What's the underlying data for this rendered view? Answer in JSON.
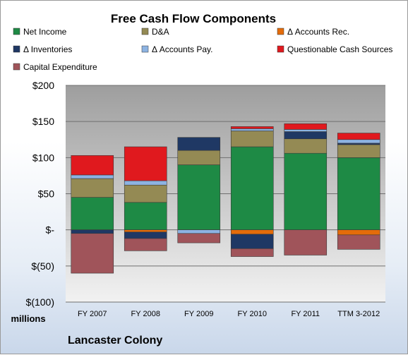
{
  "chart_data": {
    "type": "bar",
    "stacked": true,
    "title": "Free Cash Flow Components",
    "unit_label": "millions",
    "footer": "Lancaster Colony",
    "categories": [
      "FY 2007",
      "FY 2008",
      "FY 2009",
      "FY 2010",
      "FY 2011",
      "TTM 3-2012"
    ],
    "y_ticks": [
      "$200",
      "$150",
      "$100",
      "$50",
      "$-",
      "$(50)",
      "$(100)"
    ],
    "y_tick_values": [
      200,
      150,
      100,
      50,
      0,
      -50,
      -100
    ],
    "ylim": [
      -100,
      200
    ],
    "grid": true,
    "legend_position": "top",
    "series": [
      {
        "name": "Net Income",
        "color": "#1e8a45",
        "values": [
          45,
          38,
          90,
          115,
          106,
          100
        ]
      },
      {
        "name": "D&A",
        "color": "#948a54",
        "values": [
          26,
          24,
          20,
          22,
          20,
          18
        ]
      },
      {
        "name": "Δ Accounts Rec.",
        "color": "#e46c0a",
        "values": [
          0,
          -3,
          0,
          -6,
          0,
          -7
        ]
      },
      {
        "name": "Δ Inventories",
        "color": "#1f3864",
        "values": [
          -5,
          -9,
          18,
          -20,
          10,
          2
        ]
      },
      {
        "name": "Δ Accounts Pay.",
        "color": "#8db3e2",
        "values": [
          5,
          6,
          -5,
          3,
          3,
          5
        ]
      },
      {
        "name": "Questionable Cash Sources",
        "color": "#e0191e",
        "values": [
          27,
          47,
          0,
          3,
          8,
          9
        ]
      },
      {
        "name": "Capital Expenditure",
        "color": "#a0545a",
        "values": [
          -55,
          -17,
          -13,
          -11,
          -35,
          -20
        ]
      }
    ]
  }
}
